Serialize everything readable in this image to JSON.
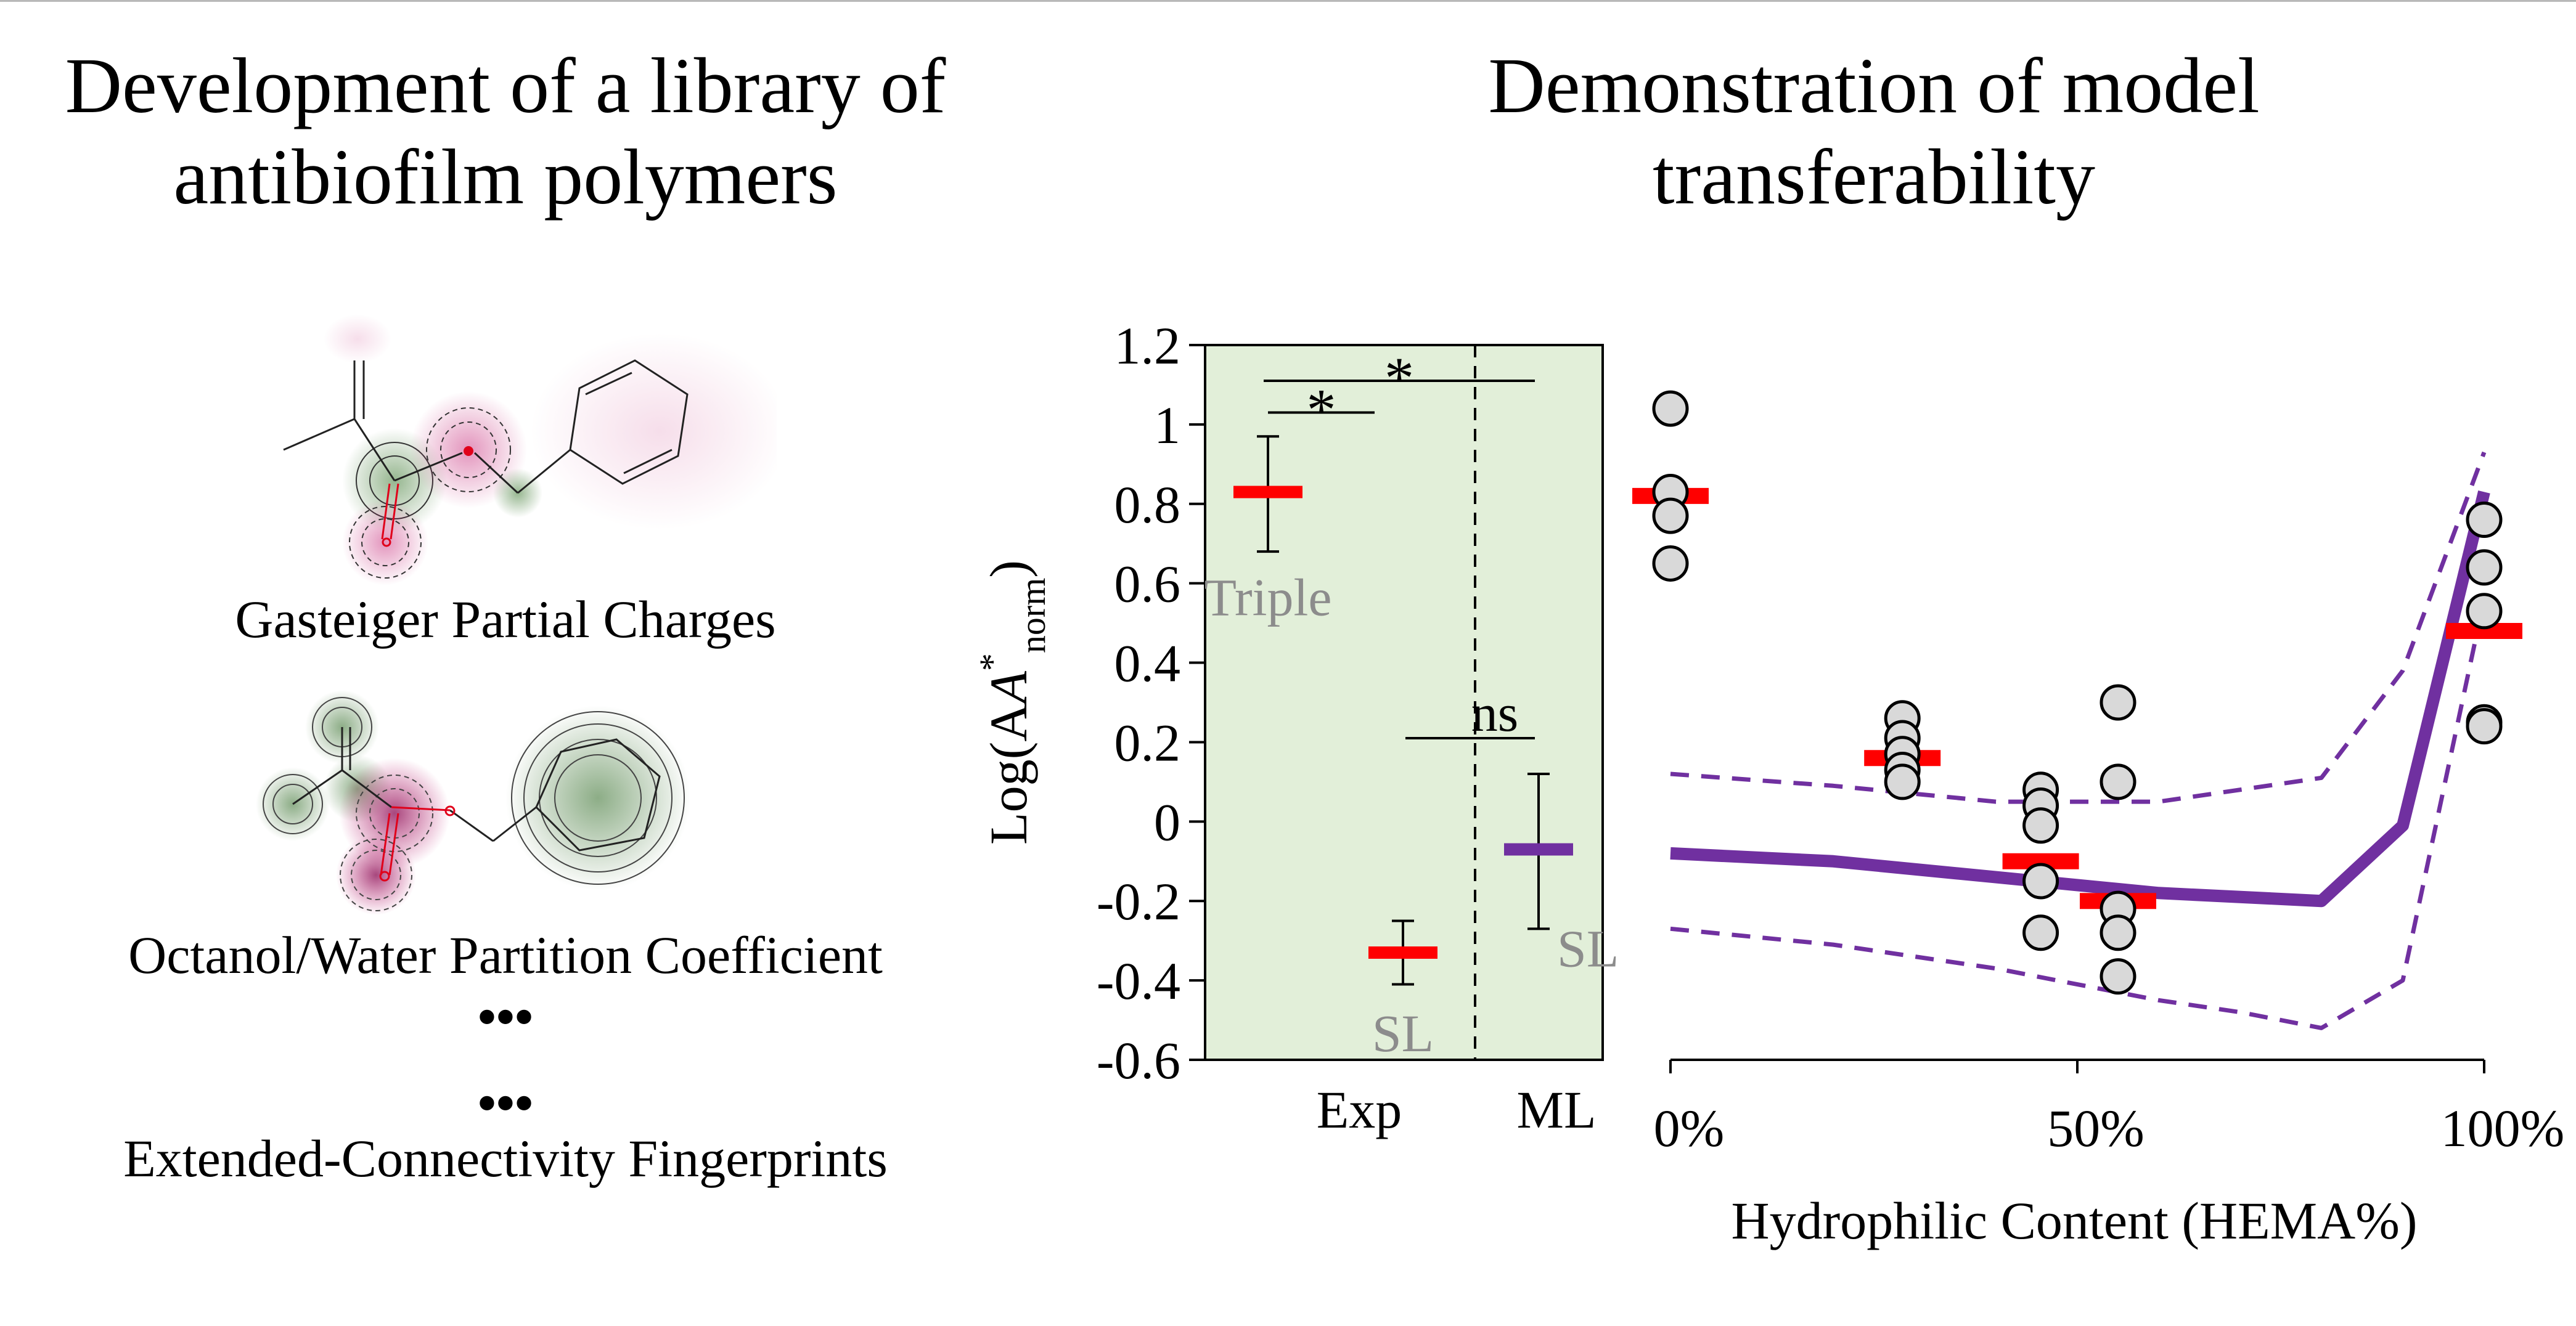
{
  "left_panel": {
    "title_line1": "Development of a library of",
    "title_line2": "antibiofilm polymers",
    "descriptors": [
      "Gasteiger Partial Charges",
      "Octanol/Water Partition Coefficient",
      "Extended-Connectivity Fingerprints"
    ],
    "ellipsis": "•••"
  },
  "right_panel": {
    "title_line1": "Demonstration of model",
    "title_line2": "transferability"
  },
  "colors": {
    "accent_red": "#ff0000",
    "accent_purple": "#7030a0",
    "plot_bg_green": "#e2efd9",
    "charge_positive": "#c0126b",
    "charge_negative": "#5f8f52"
  },
  "chart_data": [
    {
      "type": "scatter",
      "subtype": "mean-with-error-bars",
      "ylabel": "Log(A*norm)",
      "ylabel_main": "Log(A",
      "ylabel_sup": "*",
      "ylabel_sub": "norm",
      "ylabel_close": ")",
      "ylim": [
        -0.6,
        1.2
      ],
      "yticks": [
        -0.6,
        -0.4,
        -0.2,
        0,
        0.2,
        0.4,
        0.6,
        0.8,
        1,
        1.2
      ],
      "ytick_labels": [
        "-0.6",
        "-0.4",
        "-0.2",
        "0",
        "0.2",
        "0.4",
        "0.6",
        "0.8",
        "1",
        "1.2"
      ],
      "categories": [
        "Exp",
        "ML"
      ],
      "background": "light green",
      "grid": false,
      "series": [
        {
          "label": "Triple",
          "group": "Exp",
          "mean": 0.83,
          "upper": 0.97,
          "lower": 0.68,
          "color": "#ff0000"
        },
        {
          "label": "SL",
          "group": "Exp",
          "mean": -0.33,
          "upper": -0.25,
          "lower": -0.41,
          "color": "#ff0000"
        },
        {
          "label": "SL",
          "group": "ML",
          "mean": -0.07,
          "upper": 0.12,
          "lower": -0.27,
          "color": "#7030a0"
        }
      ],
      "significance": [
        {
          "text": "*",
          "between": [
            "Triple",
            "SL (Exp)"
          ],
          "y": 1.03
        },
        {
          "text": "*",
          "between": [
            "Triple",
            "SL (ML)"
          ],
          "y": 1.11
        },
        {
          "text": "ns",
          "between": [
            "SL (Exp)",
            "SL (ML)"
          ],
          "y": 0.21
        }
      ]
    },
    {
      "type": "scatter",
      "xlabel": "Hydrophilic Content (HEMA%)",
      "xlim": [
        0,
        100
      ],
      "ylim": [
        -0.6,
        1.2
      ],
      "xticks": [
        0,
        50,
        100
      ],
      "xtick_labels": [
        "0%",
        "50%",
        "100%"
      ],
      "grid": false,
      "points": [
        {
          "x": 0,
          "y": 1.04
        },
        {
          "x": 0,
          "y": 0.83
        },
        {
          "x": 0,
          "y": 0.77
        },
        {
          "x": 0,
          "y": 0.65
        },
        {
          "x": 28.5,
          "y": 0.26
        },
        {
          "x": 28.5,
          "y": 0.21
        },
        {
          "x": 28.5,
          "y": 0.17
        },
        {
          "x": 28.5,
          "y": 0.13
        },
        {
          "x": 28.5,
          "y": 0.1
        },
        {
          "x": 45.5,
          "y": 0.08
        },
        {
          "x": 45.5,
          "y": 0.04
        },
        {
          "x": 45.5,
          "y": -0.01
        },
        {
          "x": 45.5,
          "y": -0.15
        },
        {
          "x": 45.5,
          "y": -0.28
        },
        {
          "x": 55,
          "y": 0.3
        },
        {
          "x": 55,
          "y": 0.1
        },
        {
          "x": 55,
          "y": -0.22
        },
        {
          "x": 55,
          "y": -0.28
        },
        {
          "x": 55,
          "y": -0.39
        },
        {
          "x": 100,
          "y": 0.76
        },
        {
          "x": 100,
          "y": 0.64
        },
        {
          "x": 100,
          "y": 0.53
        },
        {
          "x": 100,
          "y": 0.25
        },
        {
          "x": 100,
          "y": 0.24
        }
      ],
      "means": [
        {
          "x": 0,
          "y": 0.82
        },
        {
          "x": 28.5,
          "y": 0.16
        },
        {
          "x": 45.5,
          "y": -0.1
        },
        {
          "x": 55,
          "y": -0.2
        },
        {
          "x": 100,
          "y": 0.48
        }
      ],
      "series": [
        {
          "role": "prediction",
          "style": "solid",
          "color": "#7030a0",
          "x": [
            0,
            20,
            40,
            60,
            80,
            90,
            100
          ],
          "y": [
            -0.08,
            -0.1,
            -0.14,
            -0.18,
            -0.2,
            -0.01,
            0.83
          ]
        },
        {
          "role": "upper-bound",
          "style": "dashed",
          "color": "#7030a0",
          "x": [
            0,
            20,
            40,
            60,
            80,
            90,
            100
          ],
          "y": [
            0.12,
            0.09,
            0.05,
            0.05,
            0.11,
            0.38,
            0.93
          ]
        },
        {
          "role": "lower-bound",
          "style": "dashed",
          "color": "#7030a0",
          "x": [
            0,
            20,
            40,
            60,
            70,
            80,
            90,
            100
          ],
          "y": [
            -0.27,
            -0.31,
            -0.37,
            -0.45,
            -0.48,
            -0.52,
            -0.4,
            0.56
          ]
        }
      ]
    }
  ]
}
